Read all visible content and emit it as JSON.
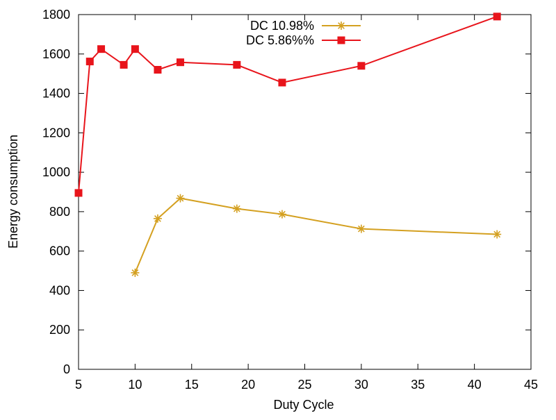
{
  "chart_data": {
    "type": "line",
    "xlabel": "Duty Cycle",
    "ylabel": "Energy consumption",
    "xlim": [
      5,
      45
    ],
    "ylim": [
      0,
      1800
    ],
    "xticks": [
      5,
      10,
      15,
      20,
      25,
      30,
      35,
      40,
      45
    ],
    "yticks": [
      0,
      200,
      400,
      600,
      800,
      1000,
      1200,
      1400,
      1600,
      1800
    ],
    "grid": false,
    "legend_position": "top-center",
    "series": [
      {
        "name": "DC 10.98%",
        "color": "#d4a020",
        "marker": "asterisk",
        "x": [
          10,
          12,
          14,
          19,
          23,
          30,
          42
        ],
        "y": [
          490,
          765,
          868,
          815,
          787,
          713,
          685
        ]
      },
      {
        "name": "DC 5.86%%",
        "color": "#e8141b",
        "marker": "square",
        "x": [
          5,
          6,
          7,
          9,
          10,
          12,
          14,
          19,
          23,
          30,
          42
        ],
        "y": [
          895,
          1562,
          1625,
          1545,
          1625,
          1520,
          1558,
          1545,
          1455,
          1540,
          1790
        ]
      }
    ]
  }
}
